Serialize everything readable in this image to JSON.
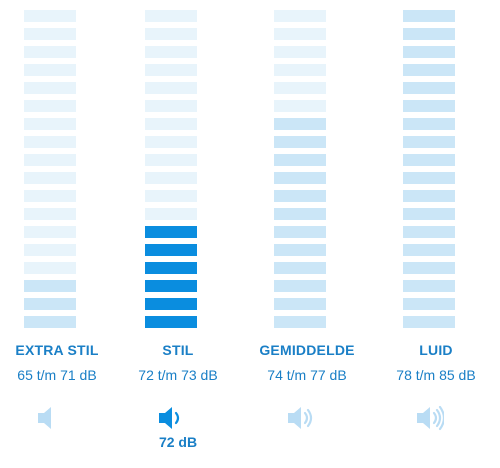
{
  "colors": {
    "accent": "#0a8ddf",
    "text": "#1a7fc6",
    "bar_inactive_light": "#e8f4fb",
    "bar_inactive_mid": "#cbe6f7",
    "bar_active": "#0a8ddf",
    "icon_muted": "#b9dcf4",
    "icon_active": "#0a8ddf"
  },
  "meter": {
    "levels": [
      {
        "label": "EXTRA STIL",
        "range": "65 t/m 71 dB",
        "icon": "speaker-mute-icon",
        "active": false
      },
      {
        "label": "STIL",
        "range": "72 t/m 73 dB",
        "icon": "speaker-low-icon",
        "active": true,
        "current_value": "72 dB"
      },
      {
        "label": "GEMIDDELDE",
        "range": "74 t/m 77 dB",
        "icon": "speaker-medium-icon",
        "active": false
      },
      {
        "label": "LUID",
        "range": "78 t/m 85 dB",
        "icon": "speaker-high-icon",
        "active": false
      }
    ]
  }
}
